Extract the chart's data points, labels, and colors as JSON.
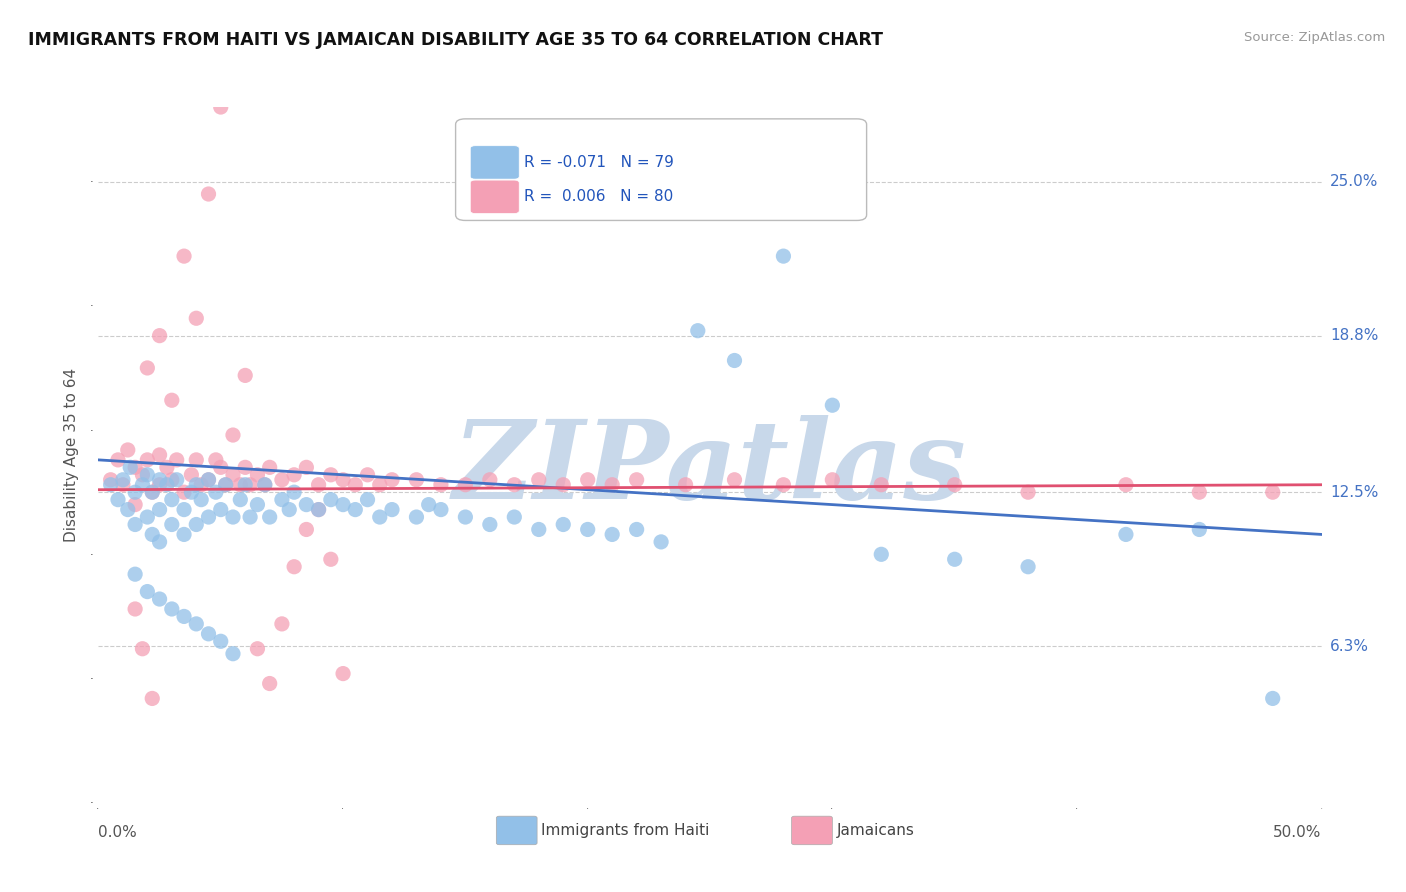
{
  "title": "IMMIGRANTS FROM HAITI VS JAMAICAN DISABILITY AGE 35 TO 64 CORRELATION CHART",
  "source": "Source: ZipAtlas.com",
  "ylabel": "Disability Age 35 to 64",
  "xlim": [
    0.0,
    0.5
  ],
  "ylim": [
    0.0,
    0.28
  ],
  "xtick_left_label": "0.0%",
  "xtick_right_label": "50.0%",
  "ytick_positions": [
    0.063,
    0.125,
    0.188,
    0.25
  ],
  "ytick_labels": [
    "6.3%",
    "12.5%",
    "18.8%",
    "25.0%"
  ],
  "legend_label1": "Immigrants from Haiti",
  "legend_label2": "Jamaicans",
  "haiti_color": "#92C0E8",
  "jamaican_color": "#F4A0B5",
  "trendline_haiti_color": "#4472C4",
  "trendline_jamaican_color": "#E05070",
  "watermark_text": "ZIPatlas",
  "watermark_color": "#C8D8EA",
  "background_color": "#FFFFFF",
  "grid_color": "#CCCCCC",
  "haiti_x": [
    0.005,
    0.008,
    0.01,
    0.012,
    0.013,
    0.015,
    0.015,
    0.018,
    0.02,
    0.02,
    0.022,
    0.022,
    0.025,
    0.025,
    0.025,
    0.028,
    0.03,
    0.03,
    0.032,
    0.035,
    0.035,
    0.038,
    0.04,
    0.04,
    0.042,
    0.045,
    0.045,
    0.048,
    0.05,
    0.052,
    0.055,
    0.058,
    0.06,
    0.062,
    0.065,
    0.068,
    0.07,
    0.075,
    0.078,
    0.08,
    0.085,
    0.09,
    0.095,
    0.1,
    0.105,
    0.11,
    0.115,
    0.12,
    0.13,
    0.135,
    0.14,
    0.15,
    0.16,
    0.17,
    0.18,
    0.19,
    0.2,
    0.21,
    0.22,
    0.23,
    0.245,
    0.26,
    0.28,
    0.3,
    0.32,
    0.35,
    0.38,
    0.42,
    0.45,
    0.48,
    0.015,
    0.02,
    0.025,
    0.03,
    0.035,
    0.04,
    0.045,
    0.05,
    0.055
  ],
  "haiti_y": [
    0.128,
    0.122,
    0.13,
    0.118,
    0.135,
    0.125,
    0.112,
    0.128,
    0.132,
    0.115,
    0.125,
    0.108,
    0.13,
    0.118,
    0.105,
    0.128,
    0.122,
    0.112,
    0.13,
    0.118,
    0.108,
    0.125,
    0.128,
    0.112,
    0.122,
    0.13,
    0.115,
    0.125,
    0.118,
    0.128,
    0.115,
    0.122,
    0.128,
    0.115,
    0.12,
    0.128,
    0.115,
    0.122,
    0.118,
    0.125,
    0.12,
    0.118,
    0.122,
    0.12,
    0.118,
    0.122,
    0.115,
    0.118,
    0.115,
    0.12,
    0.118,
    0.115,
    0.112,
    0.115,
    0.11,
    0.112,
    0.11,
    0.108,
    0.11,
    0.105,
    0.19,
    0.178,
    0.22,
    0.16,
    0.1,
    0.098,
    0.095,
    0.108,
    0.11,
    0.042,
    0.092,
    0.085,
    0.082,
    0.078,
    0.075,
    0.072,
    0.068,
    0.065,
    0.06
  ],
  "jamaican_x": [
    0.005,
    0.008,
    0.01,
    0.012,
    0.015,
    0.015,
    0.018,
    0.02,
    0.022,
    0.025,
    0.025,
    0.028,
    0.03,
    0.032,
    0.035,
    0.038,
    0.04,
    0.042,
    0.045,
    0.048,
    0.05,
    0.052,
    0.055,
    0.058,
    0.06,
    0.062,
    0.065,
    0.068,
    0.07,
    0.075,
    0.08,
    0.085,
    0.09,
    0.095,
    0.1,
    0.105,
    0.11,
    0.115,
    0.12,
    0.13,
    0.14,
    0.15,
    0.16,
    0.17,
    0.18,
    0.19,
    0.2,
    0.21,
    0.22,
    0.24,
    0.26,
    0.28,
    0.3,
    0.32,
    0.35,
    0.38,
    0.42,
    0.45,
    0.48,
    0.02,
    0.025,
    0.03,
    0.035,
    0.04,
    0.045,
    0.05,
    0.055,
    0.06,
    0.065,
    0.07,
    0.075,
    0.08,
    0.085,
    0.09,
    0.095,
    0.1,
    0.015,
    0.018,
    0.022
  ],
  "jamaican_y": [
    0.13,
    0.138,
    0.128,
    0.142,
    0.135,
    0.12,
    0.132,
    0.138,
    0.125,
    0.14,
    0.128,
    0.135,
    0.13,
    0.138,
    0.125,
    0.132,
    0.138,
    0.128,
    0.13,
    0.138,
    0.135,
    0.128,
    0.132,
    0.128,
    0.135,
    0.128,
    0.132,
    0.128,
    0.135,
    0.13,
    0.132,
    0.135,
    0.128,
    0.132,
    0.13,
    0.128,
    0.132,
    0.128,
    0.13,
    0.13,
    0.128,
    0.128,
    0.13,
    0.128,
    0.13,
    0.128,
    0.13,
    0.128,
    0.13,
    0.128,
    0.13,
    0.128,
    0.13,
    0.128,
    0.128,
    0.125,
    0.128,
    0.125,
    0.125,
    0.175,
    0.188,
    0.162,
    0.22,
    0.195,
    0.245,
    0.28,
    0.148,
    0.172,
    0.062,
    0.048,
    0.072,
    0.095,
    0.11,
    0.118,
    0.098,
    0.052,
    0.078,
    0.062,
    0.042
  ],
  "haiti_trend_x0": 0.0,
  "haiti_trend_x1": 0.5,
  "haiti_trend_y0": 0.138,
  "haiti_trend_y1": 0.108,
  "jamaican_trend_x0": 0.0,
  "jamaican_trend_x1": 0.5,
  "jamaican_trend_y0": 0.126,
  "jamaican_trend_y1": 0.128
}
